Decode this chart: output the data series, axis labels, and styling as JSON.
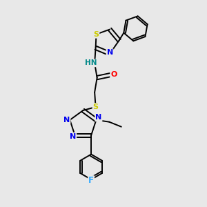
{
  "bg_color": "#e8e8e8",
  "bond_color": "#000000",
  "colors": {
    "N": "#0000ee",
    "S": "#cccc00",
    "O": "#ff0000",
    "F": "#33aaff",
    "H": "#008888",
    "C": "#000000"
  },
  "lw": 1.4,
  "fs": 8.0
}
